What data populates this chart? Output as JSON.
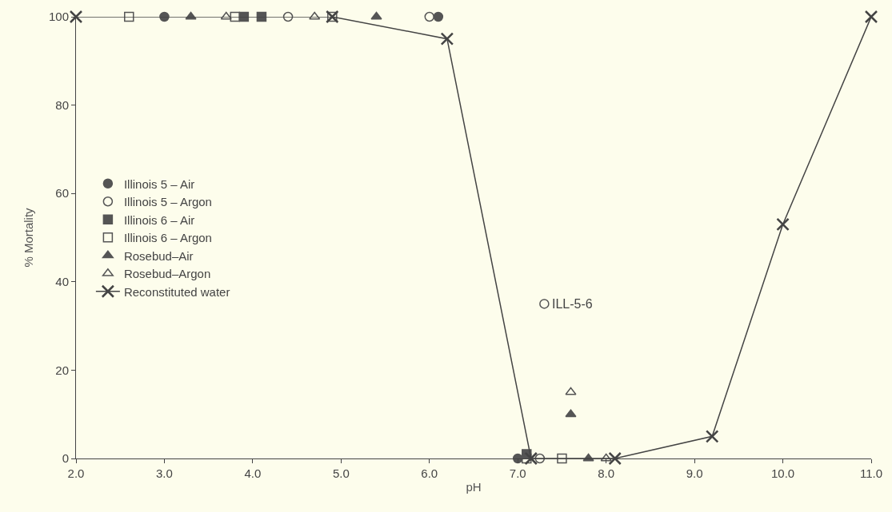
{
  "chart_data": {
    "type": "scatter",
    "xlabel": "pH",
    "ylabel": "% Mortality",
    "xlim": [
      2.0,
      11.0
    ],
    "xticks": [
      {
        "value": 2,
        "label": "2.0"
      },
      {
        "value": 3,
        "label": "3.0"
      },
      {
        "value": 4,
        "label": "4.0"
      },
      {
        "value": 5,
        "label": "5.0"
      },
      {
        "value": 6,
        "label": "6.0"
      },
      {
        "value": 7,
        "label": "7.0"
      },
      {
        "value": 8,
        "label": "8.0"
      },
      {
        "value": 9,
        "label": "9.0"
      },
      {
        "value": 10,
        "label": "10.0"
      },
      {
        "value": 11,
        "label": "11.0"
      }
    ],
    "ylim": [
      0,
      100
    ],
    "yticks": [
      0,
      20,
      40,
      60,
      80,
      100
    ],
    "grid": false,
    "legend": "left",
    "series": [
      {
        "name": "Illinois 5 – Air",
        "color": "#555555",
        "marker": "circle",
        "x": [
          3.0,
          6.1,
          7.0
        ],
        "values": [
          100,
          100,
          0
        ]
      },
      {
        "name": "Illinois 5 – Argon",
        "color": "#555555",
        "marker": "circle",
        "x": [
          4.4,
          6.0,
          7.25,
          7.3
        ],
        "values": [
          100,
          100,
          0,
          35
        ]
      },
      {
        "name": "Illinois 6 – Air",
        "color": "#555555",
        "marker": "square",
        "x": [
          3.9,
          4.1,
          7.1
        ],
        "values": [
          100,
          100,
          1
        ]
      },
      {
        "name": "Illinois 6 – Argon",
        "color": "#555555",
        "marker": "square",
        "x": [
          2.6,
          3.8,
          4.9,
          7.1,
          7.5
        ],
        "values": [
          100,
          100,
          100,
          0,
          0
        ]
      },
      {
        "name": "Rosebud–Air",
        "color": "#555555",
        "marker": "triangle",
        "x": [
          3.3,
          5.4,
          7.6,
          7.8
        ],
        "values": [
          100,
          100,
          10,
          0
        ]
      },
      {
        "name": "Rosebud–Argon",
        "color": "#555555",
        "marker": "triangle",
        "x": [
          3.7,
          4.7,
          7.6,
          8.0
        ],
        "values": [
          100,
          100,
          15,
          0
        ]
      },
      {
        "name": "Reconstituted water",
        "type": "line",
        "color": "#444444",
        "marker": "cross",
        "x": [
          2.0,
          4.9,
          6.2,
          7.15,
          8.1,
          9.2,
          10.0,
          11.0
        ],
        "values": [
          100,
          100,
          95,
          0,
          0,
          5,
          53,
          100
        ]
      }
    ],
    "annotations": [
      {
        "text": "ILL-5-6",
        "x": 7.3,
        "y": 35
      }
    ]
  }
}
